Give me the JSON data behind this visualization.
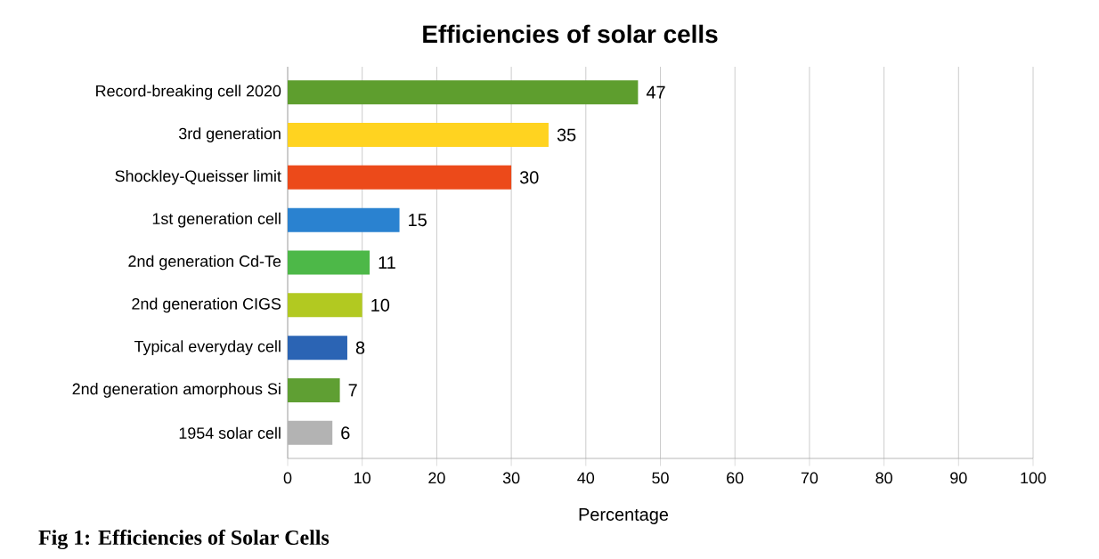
{
  "chart_data": {
    "type": "bar",
    "orientation": "horizontal",
    "title": "Efficiencies of solar cells",
    "xlabel": "Percentage",
    "categories": [
      "Record-breaking cell 2020",
      "3rd generation",
      "Shockley-Queisser limit",
      "1st generation cell",
      "2nd generation Cd-Te",
      "2nd generation CIGS",
      "Typical everyday cell",
      "2nd generation amorphous Si",
      "1954 solar cell"
    ],
    "values": [
      47,
      35,
      30,
      15,
      11,
      10,
      8,
      7,
      6
    ],
    "colors": [
      "#5e9e2e",
      "#ffd320",
      "#ec4a1a",
      "#2a82d0",
      "#4db848",
      "#b2c921",
      "#2b64b4",
      "#5f9f33",
      "#b3b3b3"
    ],
    "data_labels": true,
    "xlim": [
      0,
      100
    ],
    "xticks": [
      0,
      10,
      20,
      30,
      40,
      50,
      60,
      70,
      80,
      90,
      100
    ],
    "grid": "x",
    "annotations": [
      "Fig 1: Efficiencies of Solar Cells"
    ]
  }
}
